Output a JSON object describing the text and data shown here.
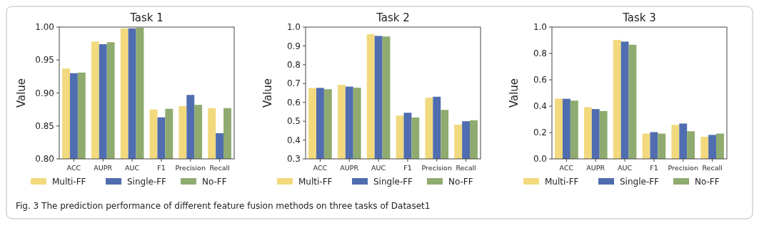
{
  "chart_data": [
    {
      "type": "bar",
      "title": "Task 1",
      "ylabel": "Value",
      "categories": [
        "ACC",
        "AUPR",
        "AUC",
        "F1",
        "Precision",
        "Recall"
      ],
      "series": [
        {
          "name": "Multi-FF",
          "color": "#f2d97e",
          "values": [
            0.937,
            0.978,
            0.998,
            0.875,
            0.88,
            0.877
          ]
        },
        {
          "name": "Single-FF",
          "color": "#4f6db0",
          "values": [
            0.93,
            0.974,
            0.998,
            0.863,
            0.897,
            0.839
          ]
        },
        {
          "name": "No-FF",
          "color": "#8fab6f",
          "values": [
            0.931,
            0.977,
            0.999,
            0.876,
            0.882,
            0.877
          ]
        }
      ],
      "ylim": [
        0.8,
        1.0
      ],
      "yticks": [
        {
          "value": 0.8,
          "label": "0.80"
        },
        {
          "value": 0.85,
          "label": "0.85"
        },
        {
          "value": 0.9,
          "label": "0.90"
        },
        {
          "value": 0.95,
          "label": "0.95"
        },
        {
          "value": 1.0,
          "label": "1.00"
        }
      ],
      "legend": "bottom",
      "annotations": [
        "Fig. 3 The prediction performance of different feature fusion methods on three tasks of Dataset1"
      ]
    },
    {
      "type": "bar",
      "title": "Task 2",
      "ylabel": "Value",
      "categories": [
        "ACC",
        "AUPR",
        "AUC",
        "F1",
        "Precision",
        "Recall"
      ],
      "series": [
        {
          "name": "Multi-FF",
          "color": "#f2d97e",
          "values": [
            0.676,
            0.693,
            0.962,
            0.53,
            0.625,
            0.482
          ]
        },
        {
          "name": "Single-FF",
          "color": "#4f6db0",
          "values": [
            0.677,
            0.684,
            0.953,
            0.545,
            0.63,
            0.5
          ]
        },
        {
          "name": "No-FF",
          "color": "#8fab6f",
          "values": [
            0.67,
            0.678,
            0.95,
            0.52,
            0.56,
            0.505
          ]
        }
      ],
      "ylim": [
        0.3,
        1.0
      ],
      "yticks": [
        0.3,
        0.4,
        0.5,
        0.6,
        0.7,
        0.8,
        0.9,
        {
          "value": 1.0,
          "label": "1.0"
        }
      ],
      "legend": "bottom"
    },
    {
      "type": "bar",
      "title": "Task 3",
      "ylabel": "Value",
      "categories": [
        "ACC",
        "AUPR",
        "AUC",
        "F1",
        "Precision",
        "Recall"
      ],
      "series": [
        {
          "name": "Multi-FF",
          "color": "#f2d97e",
          "values": [
            0.457,
            0.392,
            0.903,
            0.192,
            0.258,
            0.168
          ]
        },
        {
          "name": "Single-FF",
          "color": "#4f6db0",
          "values": [
            0.456,
            0.378,
            0.89,
            0.203,
            0.268,
            0.182
          ]
        },
        {
          "name": "No-FF",
          "color": "#8fab6f",
          "values": [
            0.442,
            0.363,
            0.866,
            0.192,
            0.21,
            0.192
          ]
        }
      ],
      "ylim": [
        0.0,
        1.0
      ],
      "yticks": [
        {
          "value": 0,
          "label": "0.0"
        },
        0.2,
        0.4,
        0.6,
        0.8,
        {
          "value": 1.0,
          "label": "1.0"
        }
      ],
      "legend": "bottom"
    }
  ]
}
